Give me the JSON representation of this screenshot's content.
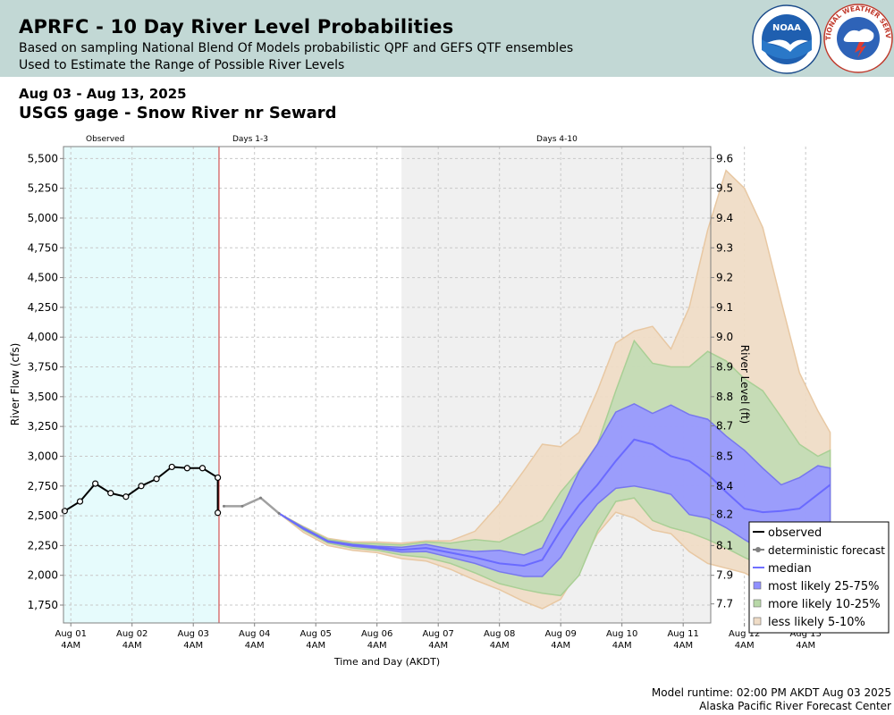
{
  "header": {
    "title": "APRFC - 10 Day River Level Probabilities",
    "subtitle_1": "Based on sampling National Blend Of Models probabilistic QPF and GEFS QTF ensembles",
    "subtitle_2": "Used to Estimate the Range of Possible River Levels",
    "noaa_logo_text": "NOAA",
    "nws_logo_text": "NATIONAL WEATHER SERVICE",
    "colors": {
      "band": "#c2d8d5"
    }
  },
  "date_range": "Aug 03 - Aug 13, 2025",
  "gage_name": "USGS gage - Snow River nr Seward",
  "footer": {
    "runtime": "Model runtime: 02:00 PM AKDT Aug 03 2025",
    "center": "Alaska Pacific River Forecast Center"
  },
  "chart_data": {
    "type": "area",
    "xlabel": "Time and Day (AKDT)",
    "ylabel": "River Flow (cfs)",
    "y2label": "River Level (ft)",
    "ylim": [
      1600,
      5600
    ],
    "yticks": [
      1750,
      2000,
      2250,
      2500,
      2750,
      3000,
      3250,
      3500,
      3750,
      4000,
      4250,
      4500,
      4750,
      5000,
      5250,
      5500
    ],
    "ytick_labels": [
      "1,750",
      "2,000",
      "2,250",
      "2,500",
      "2,750",
      "3,000",
      "3,250",
      "3,500",
      "3,750",
      "4,000",
      "4,250",
      "4,500",
      "4,750",
      "5,000",
      "5,250",
      "5,500"
    ],
    "y2ticks": [
      {
        "label": "7.7",
        "flow": 1760
      },
      {
        "label": "7.9",
        "flow": 2000
      },
      {
        "label": "8.1",
        "flow": 2250
      },
      {
        "label": "8.2",
        "flow": 2510
      },
      {
        "label": "8.4",
        "flow": 2750
      },
      {
        "label": "8.5",
        "flow": 3000
      },
      {
        "label": "8.7",
        "flow": 3255
      },
      {
        "label": "8.8",
        "flow": 3500
      },
      {
        "label": "8.9",
        "flow": 3750
      },
      {
        "label": "9.0",
        "flow": 4000
      },
      {
        "label": "9.1",
        "flow": 4250
      },
      {
        "label": "9.2",
        "flow": 4500
      },
      {
        "label": "9.3",
        "flow": 4750
      },
      {
        "label": "9.4",
        "flow": 5000
      },
      {
        "label": "9.5",
        "flow": 5250
      },
      {
        "label": "9.6",
        "flow": 5500
      }
    ],
    "xlim": [
      -0.12,
      10.45
    ],
    "xticks": [
      {
        "day": 0,
        "label": "Aug 01",
        "sub": "4AM"
      },
      {
        "day": 1,
        "label": "Aug 02",
        "sub": "4AM"
      },
      {
        "day": 2,
        "label": "Aug 03",
        "sub": "4AM"
      },
      {
        "day": 3,
        "label": "Aug 04",
        "sub": "4AM"
      },
      {
        "day": 4,
        "label": "Aug 05",
        "sub": "4AM"
      },
      {
        "day": 5,
        "label": "Aug 06",
        "sub": "4AM"
      },
      {
        "day": 6,
        "label": "Aug 07",
        "sub": "4AM"
      },
      {
        "day": 7,
        "label": "Aug 08",
        "sub": "4AM"
      },
      {
        "day": 8,
        "label": "Aug 09",
        "sub": "4AM"
      },
      {
        "day": 9,
        "label": "Aug 10",
        "sub": "4AM"
      },
      {
        "day": 10,
        "label": "Aug 11",
        "sub": "4AM"
      },
      {
        "day": 11,
        "label": "Aug 12",
        "sub": "4AM"
      },
      {
        "day": 12,
        "label": "Aug 13",
        "sub": "4AM"
      }
    ],
    "regions": [
      {
        "label": "Observed",
        "from": -0.12,
        "to": 2.42,
        "color": "#e6fbfc"
      },
      {
        "label": "Days 1-3",
        "from": 2.42,
        "to": 5.4,
        "color": "#ffffff"
      },
      {
        "label": "Days 4-10",
        "from": 5.4,
        "to": 10.45,
        "color": "#f0f0f0"
      }
    ],
    "forecast_start": 2.42,
    "grid": true,
    "legend": {
      "position": "right",
      "entries": [
        {
          "label": "observed",
          "kind": "line",
          "color": "#000000"
        },
        {
          "label": "deterministic forecast",
          "kind": "dotline",
          "color": "#808080"
        },
        {
          "label": "median",
          "kind": "line",
          "color": "#7070ff"
        },
        {
          "label": "most likely 25-75%",
          "kind": "box",
          "color": "#9090ff"
        },
        {
          "label": "more likely 10-25%",
          "kind": "box",
          "color": "#b8d8a8"
        },
        {
          "label": "less likely 5-10%",
          "kind": "box",
          "color": "#efdcc6"
        }
      ]
    },
    "observed": {
      "x": [
        -0.1,
        0.15,
        0.4,
        0.65,
        0.9,
        1.15,
        1.4,
        1.65,
        1.9,
        2.15,
        2.4
      ],
      "y": [
        2540,
        2620,
        2770,
        2690,
        2660,
        2750,
        2810,
        2910,
        2900,
        2900,
        2820
      ],
      "end": {
        "x": 2.4,
        "y": 2525
      }
    },
    "deterministic": {
      "x": [
        2.5,
        2.8,
        3.1,
        3.4
      ],
      "y": [
        2580,
        2580,
        2650,
        2520
      ]
    },
    "bands_x": [
      3.4,
      3.8,
      4.2,
      4.6,
      5.0,
      5.4,
      5.8,
      6.2,
      6.6,
      7.0,
      7.4,
      7.7,
      8.0,
      8.3,
      8.6,
      8.9,
      9.2,
      9.5,
      9.8,
      10.1,
      10.4,
      10.7,
      11.0,
      11.3,
      11.6,
      11.9,
      12.2,
      12.4
    ],
    "bands": {
      "p05": [
        2520,
        2360,
        2250,
        2210,
        2190,
        2140,
        2120,
        2050,
        1960,
        1880,
        1780,
        1720,
        1800,
        2050,
        2350,
        2530,
        2480,
        2380,
        2350,
        2200,
        2100,
        2060,
        2020,
        1940,
        1960,
        1940,
        1880,
        1860
      ],
      "p10": [
        2520,
        2380,
        2270,
        2230,
        2210,
        2170,
        2150,
        2100,
        2020,
        1930,
        1880,
        1850,
        1830,
        2000,
        2370,
        2620,
        2650,
        2460,
        2400,
        2360,
        2300,
        2230,
        2150,
        2080,
        2010,
        1980,
        2050,
        2090
      ],
      "p25": [
        2520,
        2390,
        2280,
        2245,
        2225,
        2195,
        2200,
        2150,
        2100,
        2030,
        1990,
        1990,
        2150,
        2400,
        2600,
        2730,
        2750,
        2720,
        2680,
        2510,
        2480,
        2400,
        2300,
        2210,
        2240,
        2360,
        2410,
        2360
      ],
      "median": [
        2520,
        2390,
        2285,
        2255,
        2235,
        2215,
        2230,
        2190,
        2150,
        2100,
        2080,
        2130,
        2380,
        2590,
        2760,
        2960,
        3140,
        3100,
        3000,
        2960,
        2850,
        2700,
        2560,
        2530,
        2540,
        2560,
        2680,
        2760
      ],
      "p75": [
        2520,
        2400,
        2290,
        2260,
        2245,
        2235,
        2260,
        2220,
        2200,
        2210,
        2170,
        2230,
        2540,
        2870,
        3100,
        3370,
        3440,
        3360,
        3430,
        3350,
        3310,
        3170,
        3050,
        2900,
        2760,
        2820,
        2920,
        2900
      ],
      "p90": [
        2520,
        2405,
        2300,
        2270,
        2265,
        2255,
        2280,
        2270,
        2300,
        2280,
        2380,
        2460,
        2700,
        2880,
        3100,
        3550,
        3970,
        3780,
        3750,
        3750,
        3880,
        3800,
        3650,
        3550,
        3330,
        3100,
        3000,
        3050
      ],
      "p95": [
        2520,
        2410,
        2310,
        2280,
        2280,
        2270,
        2290,
        2290,
        2370,
        2600,
        2880,
        3100,
        3080,
        3200,
        3550,
        3950,
        4050,
        4090,
        3900,
        4250,
        4900,
        5400,
        5250,
        4920,
        4300,
        3700,
        3380,
        3200
      ]
    },
    "colors": {
      "observed_bg": "#e6fbfc",
      "future_bg": "#f0f0f0",
      "forecast_line": "#cc3333",
      "band_5_10": "#efdcc6",
      "band_5_10_edge": "#e8c8a3",
      "band_10_25": "#c3dbb5",
      "band_10_25_edge": "#a9cf95",
      "band_25_75": "#9999ff",
      "band_25_75_edge": "#7777ee",
      "median": "#6a6aff"
    }
  }
}
